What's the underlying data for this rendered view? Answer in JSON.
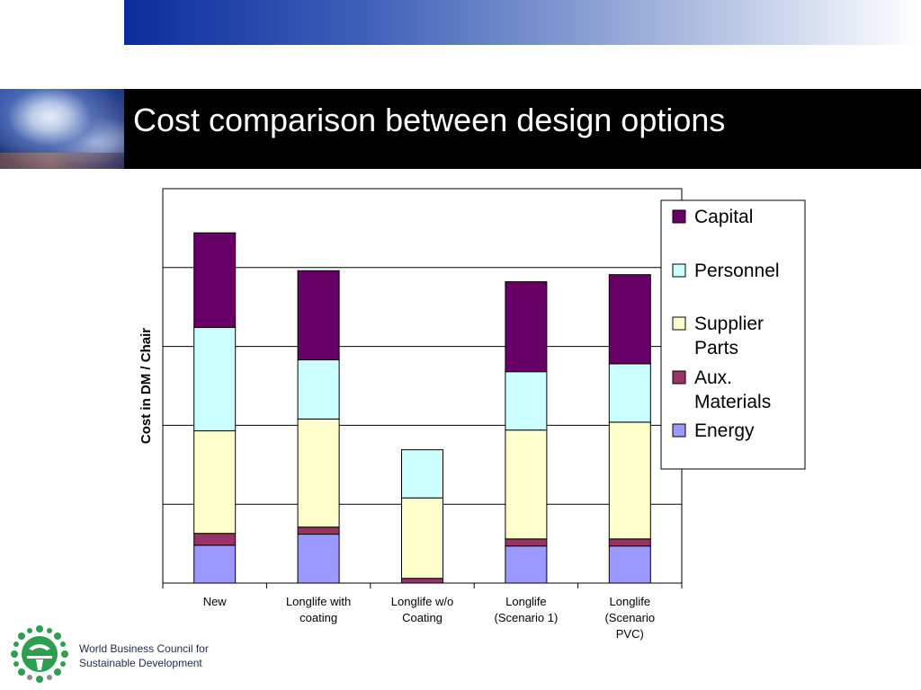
{
  "slide": {
    "title": "Cost comparison between design options",
    "org_line1": "World Business Council for",
    "org_line2": "Sustainable Development",
    "logo_icon": "wbcsd-globe-logo-icon"
  },
  "chart_data": {
    "type": "bar",
    "stacked": true,
    "categories": [
      [
        "New"
      ],
      [
        "Longlife with",
        "coating"
      ],
      [
        "Longlife w/o",
        "Coating"
      ],
      [
        "Longlife",
        "(Scenario 1)"
      ],
      [
        "Longlife",
        "(Scenario",
        "PVC)"
      ]
    ],
    "ylabel": "Cost in DM / Chair",
    "xlabel": "",
    "ylim": [
      0,
      5
    ],
    "gridlines": [
      1,
      2,
      3,
      4
    ],
    "y_tick_labels_shown": false,
    "grid": true,
    "legend_position": "right",
    "series": [
      {
        "name": "Energy",
        "color": "#9999ff",
        "values": [
          0.48,
          0.62,
          0.0,
          0.47,
          0.47
        ]
      },
      {
        "name": "Aux. Materials",
        "color": "#993366",
        "values": [
          0.15,
          0.09,
          0.06,
          0.09,
          0.09
        ]
      },
      {
        "name": "Supplier Parts",
        "color": "#ffffcc",
        "values": [
          1.3,
          1.37,
          1.02,
          1.38,
          1.48
        ]
      },
      {
        "name": "Personnel",
        "color": "#ccffff",
        "values": [
          1.31,
          0.75,
          0.61,
          0.74,
          0.74
        ]
      },
      {
        "name": "Capital",
        "color": "#660066",
        "values": [
          1.2,
          1.13,
          0.0,
          1.14,
          1.13
        ]
      }
    ],
    "legend_order": [
      {
        "lines": [
          "Capital"
        ],
        "color": "#660066"
      },
      {
        "lines": [
          "Personnel"
        ],
        "color": "#ccffff"
      },
      {
        "lines": [
          "Supplier",
          "Parts"
        ],
        "color": "#ffffcc"
      },
      {
        "lines": [
          "Aux.",
          "Materials"
        ],
        "color": "#993366"
      },
      {
        "lines": [
          "Energy"
        ],
        "color": "#9999ff"
      }
    ]
  }
}
